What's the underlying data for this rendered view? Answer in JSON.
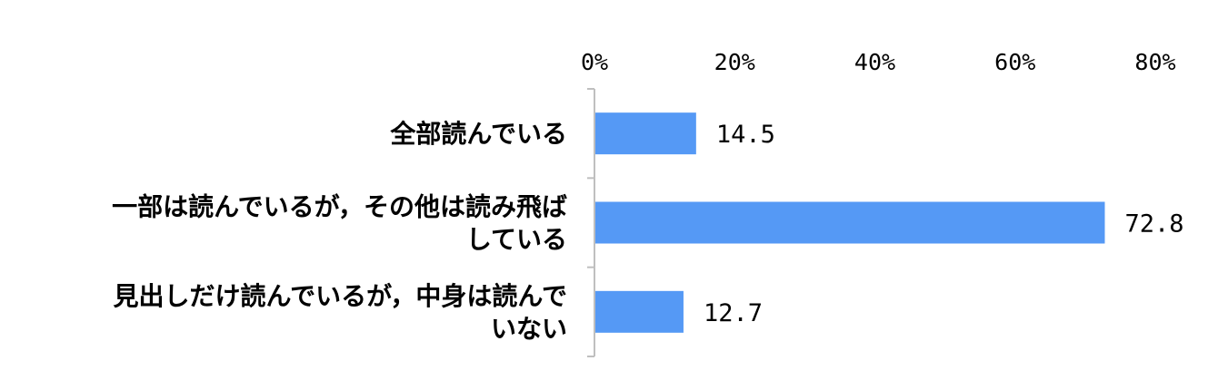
{
  "chart_data": {
    "type": "bar",
    "orientation": "horizontal",
    "categories": [
      [
        "全部読んでいる"
      ],
      [
        "一部は読んでいるが，その他は読み飛ば",
        "している"
      ],
      [
        "見出しだけ読んでいるが，中身は読んで",
        "いない"
      ]
    ],
    "values": [
      14.5,
      72.8,
      12.7
    ],
    "value_labels": [
      "14.5",
      "72.8",
      "12.7"
    ],
    "x_ticks": [
      "0%",
      "20%",
      "40%",
      "60%",
      "80%"
    ],
    "xlim": [
      0,
      80
    ],
    "x_axis_position": "top",
    "grid": false,
    "legend": "none",
    "bar_color": "#5599f5",
    "axis_color": "#bfbfbf",
    "title": "",
    "xlabel": "",
    "ylabel": ""
  }
}
